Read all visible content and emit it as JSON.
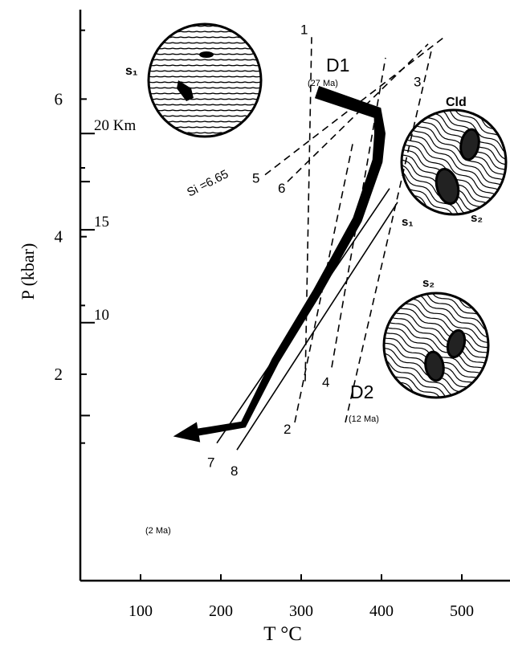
{
  "chart_data": {
    "type": "line",
    "title": "",
    "xlabel": "T °C",
    "ylabel": "P (kbar)",
    "xlim": [
      25,
      560
    ],
    "ylim": [
      -1,
      7.3
    ],
    "x_ticks": [
      "100",
      "200",
      "300",
      "400",
      "500"
    ],
    "y_ticks": [
      "2",
      "4",
      "6"
    ],
    "depth_ticks": [
      {
        "label": "20 Km",
        "p": 5.5
      },
      {
        "label": "15",
        "p": 4.1
      },
      {
        "label": "10",
        "p": 2.75
      }
    ],
    "depth_minor_p": [
      4.8,
      1.4
    ],
    "reactions_dashed": [
      {
        "label": "1",
        "x": [
          305,
          313
        ],
        "y": [
          1.9,
          6.9
        ]
      },
      {
        "label": "3",
        "x": [
          355,
          462
        ],
        "y": [
          1.3,
          6.7
        ]
      },
      {
        "label": "5",
        "x": [
          255,
          478
        ],
        "y": [
          4.9,
          6.9
        ]
      },
      {
        "label": "6",
        "x": [
          283,
          458
        ],
        "y": [
          4.8,
          6.8
        ]
      },
      {
        "label": "2",
        "x": [
          292,
          365
        ],
        "y": [
          1.3,
          5.4
        ]
      },
      {
        "label": "4",
        "x": [
          338,
          405
        ],
        "y": [
          2.1,
          6.6
        ]
      }
    ],
    "reactions_solid": [
      {
        "label": "7",
        "x": [
          195,
          410
        ],
        "y": [
          1.0,
          4.7
        ]
      },
      {
        "label": "8",
        "x": [
          220,
          420
        ],
        "y": [
          0.9,
          4.5
        ]
      }
    ],
    "ptt_path": {
      "x": [
        320,
        395,
        398,
        395,
        370,
        320,
        268,
        228,
        142
      ],
      "y": [
        6.1,
        5.8,
        5.5,
        5.1,
        4.25,
        3.2,
        2.2,
        1.27,
        1.1
      ]
    },
    "annotations": {
      "d1": "D1",
      "d1_age": "(27 Ma)",
      "d2": "D2",
      "d2_age": "(12 Ma)",
      "end_age": "(2 Ma)",
      "si": "Si =6.65",
      "s1_top": "s₁",
      "cld": "Cld",
      "s1_mid": "s₁",
      "s2_mid": "s₂",
      "s2_low": "s₂"
    }
  }
}
